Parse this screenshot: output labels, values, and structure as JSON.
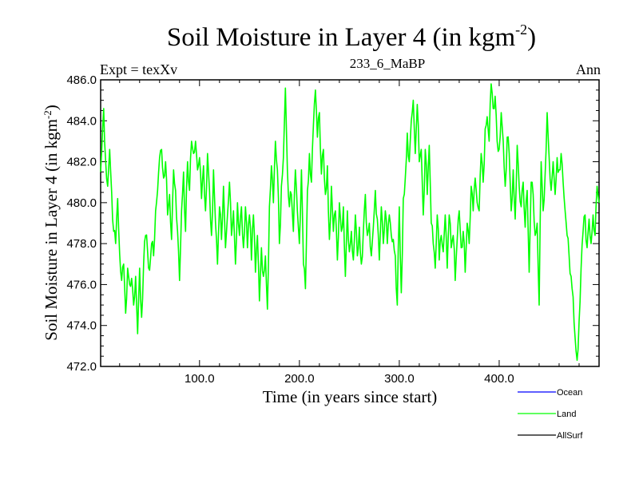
{
  "chart_data": {
    "type": "line",
    "title": "Soil Moisture in Layer 4 (in kgm",
    "title_sup": "-2",
    "title_suffix": ")",
    "subtitle_left": "Expt = texXv",
    "subtitle_center": "233_6_MaBP",
    "subtitle_right": "Ann",
    "xlabel": "Time (in years since start)",
    "ylabel": "Soil Moisture in Layer 4 (in kgm",
    "ylabel_sup": "-2",
    "ylabel_suffix": ")",
    "xlim": [
      1,
      500
    ],
    "ylim": [
      472.0,
      486.0
    ],
    "xticks": [
      100,
      200,
      300,
      400
    ],
    "xtick_labels": [
      "100.0",
      "200.0",
      "300.0",
      "400.0"
    ],
    "yticks": [
      472,
      474,
      476,
      478,
      480,
      482,
      484,
      486
    ],
    "ytick_labels": [
      "472.0",
      "474.0",
      "476.0",
      "478.0",
      "480.0",
      "482.0",
      "484.0",
      "486.0"
    ],
    "keypoints": [
      [
        1,
        481.5
      ],
      [
        4,
        484.6
      ],
      [
        6,
        482.0
      ],
      [
        8,
        480.8
      ],
      [
        10,
        482.6
      ],
      [
        12,
        480.5
      ],
      [
        14,
        478.6
      ],
      [
        16,
        478.0
      ],
      [
        18,
        480.2
      ],
      [
        20,
        477.5
      ],
      [
        22,
        476.2
      ],
      [
        24,
        477.0
      ],
      [
        26,
        474.6
      ],
      [
        28,
        476.8
      ],
      [
        30,
        476.0
      ],
      [
        32,
        476.3
      ],
      [
        34,
        475.0
      ],
      [
        36,
        476.4
      ],
      [
        38,
        473.6
      ],
      [
        40,
        476.8
      ],
      [
        42,
        474.4
      ],
      [
        44,
        477.0
      ],
      [
        46,
        478.4
      ],
      [
        48,
        477.6
      ],
      [
        50,
        476.7
      ],
      [
        52,
        478.0
      ],
      [
        54,
        477.4
      ],
      [
        56,
        479.6
      ],
      [
        58,
        480.6
      ],
      [
        60,
        482.2
      ],
      [
        62,
        482.6
      ],
      [
        64,
        481.2
      ],
      [
        66,
        482.0
      ],
      [
        68,
        479.4
      ],
      [
        70,
        480.4
      ],
      [
        72,
        478.2
      ],
      [
        74,
        481.6
      ],
      [
        76,
        480.6
      ],
      [
        78,
        478.6
      ],
      [
        80,
        476.2
      ],
      [
        82,
        479.6
      ],
      [
        84,
        481.5
      ],
      [
        86,
        478.6
      ],
      [
        88,
        482.0
      ],
      [
        90,
        480.6
      ],
      [
        92,
        483.0
      ],
      [
        94,
        482.4
      ],
      [
        96,
        483.0
      ],
      [
        98,
        481.6
      ],
      [
        100,
        482.2
      ],
      [
        102,
        480.2
      ],
      [
        104,
        481.8
      ],
      [
        106,
        479.6
      ],
      [
        108,
        482.4
      ],
      [
        110,
        480.6
      ],
      [
        112,
        478.4
      ],
      [
        114,
        481.6
      ],
      [
        116,
        479.0
      ],
      [
        118,
        477.0
      ],
      [
        120,
        479.8
      ],
      [
        122,
        478.2
      ],
      [
        124,
        480.8
      ],
      [
        126,
        477.8
      ],
      [
        128,
        479.4
      ],
      [
        130,
        481.0
      ],
      [
        132,
        478.4
      ],
      [
        134,
        479.6
      ],
      [
        136,
        477.0
      ],
      [
        138,
        480.0
      ],
      [
        140,
        478.4
      ],
      [
        142,
        479.8
      ],
      [
        144,
        477.8
      ],
      [
        146,
        479.8
      ],
      [
        148,
        477.8
      ],
      [
        150,
        479.4
      ],
      [
        152,
        477.2
      ],
      [
        154,
        479.4
      ],
      [
        156,
        476.6
      ],
      [
        158,
        478.4
      ],
      [
        160,
        475.2
      ],
      [
        162,
        477.8
      ],
      [
        164,
        476.4
      ],
      [
        166,
        477.4
      ],
      [
        168,
        474.8
      ],
      [
        170,
        479.8
      ],
      [
        172,
        481.8
      ],
      [
        174,
        480.0
      ],
      [
        176,
        483.0
      ],
      [
        178,
        481.6
      ],
      [
        180,
        478.0
      ],
      [
        182,
        480.8
      ],
      [
        184,
        482.2
      ],
      [
        186,
        485.6
      ],
      [
        188,
        481.6
      ],
      [
        190,
        479.8
      ],
      [
        192,
        480.4
      ],
      [
        194,
        478.6
      ],
      [
        196,
        481.6
      ],
      [
        198,
        479.6
      ],
      [
        200,
        478.0
      ],
      [
        202,
        481.6
      ],
      [
        204,
        477.0
      ],
      [
        206,
        475.8
      ],
      [
        208,
        480.6
      ],
      [
        210,
        482.4
      ],
      [
        212,
        481.0
      ],
      [
        214,
        483.8
      ],
      [
        216,
        485.5
      ],
      [
        218,
        483.2
      ],
      [
        220,
        484.4
      ],
      [
        222,
        481.4
      ],
      [
        224,
        482.6
      ],
      [
        226,
        480.4
      ],
      [
        228,
        481.8
      ],
      [
        230,
        478.2
      ],
      [
        232,
        480.8
      ],
      [
        234,
        478.6
      ],
      [
        236,
        479.6
      ],
      [
        238,
        477.2
      ],
      [
        240,
        480.0
      ],
      [
        242,
        478.6
      ],
      [
        244,
        479.8
      ],
      [
        246,
        476.4
      ],
      [
        248,
        479.6
      ],
      [
        250,
        477.6
      ],
      [
        252,
        478.6
      ],
      [
        254,
        477.2
      ],
      [
        256,
        479.4
      ],
      [
        258,
        477.4
      ],
      [
        260,
        478.8
      ],
      [
        262,
        477.0
      ],
      [
        264,
        478.6
      ],
      [
        266,
        480.4
      ],
      [
        268,
        478.4
      ],
      [
        270,
        479.0
      ],
      [
        272,
        477.4
      ],
      [
        274,
        478.8
      ],
      [
        276,
        480.6
      ],
      [
        278,
        479.2
      ],
      [
        280,
        477.2
      ],
      [
        282,
        479.8
      ],
      [
        284,
        478.0
      ],
      [
        286,
        479.6
      ],
      [
        288,
        478.0
      ],
      [
        290,
        479.4
      ],
      [
        292,
        478.4
      ],
      [
        294,
        478.2
      ],
      [
        296,
        477.4
      ],
      [
        298,
        475.0
      ],
      [
        300,
        479.8
      ],
      [
        302,
        475.6
      ],
      [
        304,
        480.2
      ],
      [
        306,
        481.2
      ],
      [
        308,
        483.4
      ],
      [
        310,
        482.0
      ],
      [
        312,
        484.0
      ],
      [
        314,
        485.0
      ],
      [
        316,
        482.4
      ],
      [
        318,
        484.8
      ],
      [
        320,
        482.0
      ],
      [
        322,
        482.6
      ],
      [
        324,
        479.4
      ],
      [
        326,
        482.6
      ],
      [
        328,
        480.4
      ],
      [
        330,
        482.8
      ],
      [
        332,
        479.0
      ],
      [
        334,
        478.0
      ],
      [
        336,
        476.8
      ],
      [
        338,
        479.4
      ],
      [
        340,
        477.2
      ],
      [
        342,
        478.4
      ],
      [
        344,
        477.6
      ],
      [
        346,
        479.4
      ],
      [
        348,
        476.8
      ],
      [
        350,
        479.4
      ],
      [
        352,
        477.8
      ],
      [
        354,
        478.4
      ],
      [
        356,
        476.2
      ],
      [
        358,
        478.2
      ],
      [
        360,
        479.6
      ],
      [
        362,
        477.8
      ],
      [
        364,
        478.6
      ],
      [
        366,
        476.6
      ],
      [
        368,
        479.0
      ],
      [
        370,
        478.0
      ],
      [
        372,
        480.8
      ],
      [
        374,
        479.6
      ],
      [
        376,
        481.2
      ],
      [
        378,
        480.0
      ],
      [
        380,
        479.6
      ],
      [
        382,
        482.4
      ],
      [
        384,
        481.0
      ],
      [
        386,
        483.6
      ],
      [
        388,
        484.2
      ],
      [
        390,
        483.0
      ],
      [
        392,
        485.8
      ],
      [
        394,
        484.6
      ],
      [
        396,
        485.2
      ],
      [
        398,
        483.0
      ],
      [
        400,
        482.6
      ],
      [
        402,
        484.4
      ],
      [
        404,
        483.0
      ],
      [
        406,
        480.8
      ],
      [
        408,
        483.2
      ],
      [
        410,
        482.4
      ],
      [
        412,
        479.6
      ],
      [
        414,
        481.6
      ],
      [
        416,
        479.2
      ],
      [
        418,
        482.8
      ],
      [
        420,
        480.8
      ],
      [
        422,
        479.8
      ],
      [
        424,
        481.0
      ],
      [
        426,
        478.8
      ],
      [
        428,
        480.6
      ],
      [
        430,
        476.6
      ],
      [
        432,
        481.0
      ],
      [
        434,
        480.4
      ],
      [
        436,
        478.4
      ],
      [
        438,
        479.0
      ],
      [
        440,
        475.0
      ],
      [
        442,
        482.0
      ],
      [
        444,
        479.6
      ],
      [
        446,
        481.4
      ],
      [
        448,
        484.4
      ],
      [
        450,
        482.2
      ],
      [
        452,
        480.6
      ],
      [
        454,
        482.0
      ],
      [
        456,
        480.4
      ],
      [
        458,
        482.2
      ],
      [
        460,
        481.6
      ],
      [
        462,
        482.4
      ],
      [
        464,
        481.0
      ],
      [
        466,
        479.6
      ],
      [
        468,
        478.4
      ],
      [
        470,
        477.4
      ],
      [
        472,
        476.4
      ],
      [
        474,
        475.4
      ],
      [
        476,
        473.4
      ],
      [
        478,
        472.3
      ],
      [
        480,
        474.2
      ],
      [
        482,
        476.8
      ],
      [
        484,
        478.6
      ],
      [
        486,
        479.4
      ],
      [
        488,
        477.8
      ],
      [
        490,
        479.2
      ],
      [
        492,
        478.0
      ],
      [
        494,
        479.4
      ],
      [
        496,
        478.4
      ],
      [
        498,
        480.8
      ],
      [
        500,
        480.0
      ]
    ],
    "series": [
      {
        "name": "Ocean",
        "color": "#0000ff",
        "visible_on_plot": false
      },
      {
        "name": "Land",
        "color": "#00ff00",
        "visible_on_plot": true
      },
      {
        "name": "AllSurf",
        "color": "#000000",
        "visible_on_plot": false
      }
    ],
    "legend": "bottom-right",
    "grid": false
  }
}
